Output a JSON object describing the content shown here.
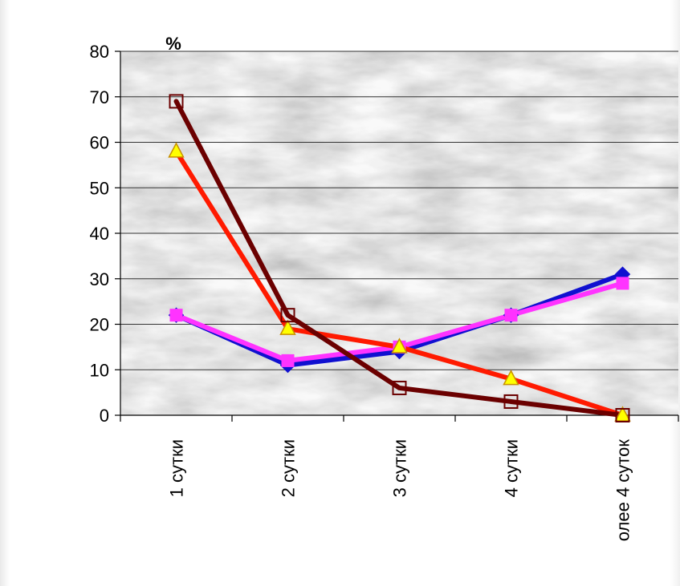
{
  "chart_data": {
    "type": "line",
    "y_unit_label": "%",
    "categories": [
      "1 сутки",
      "2 сутки",
      "3 сутки",
      "4 сутки",
      "олее 4 суток"
    ],
    "ylim": [
      0,
      80
    ],
    "yticks": [
      0,
      10,
      20,
      30,
      40,
      50,
      60,
      70,
      80
    ],
    "grid": true,
    "legend": "none",
    "series": [
      {
        "values": [
          22,
          11,
          14,
          22,
          31
        ],
        "color": "#1010d0",
        "marker": "diamond"
      },
      {
        "values": [
          22,
          12,
          15,
          22,
          29
        ],
        "color": "#ff33ff",
        "marker": "square"
      },
      {
        "values": [
          58,
          19,
          15,
          8,
          0
        ],
        "color": "#ff1a00",
        "marker": "triangle"
      },
      {
        "values": [
          69,
          22,
          6,
          3,
          0
        ],
        "color": "#6b0000",
        "marker": "open-square"
      }
    ]
  }
}
